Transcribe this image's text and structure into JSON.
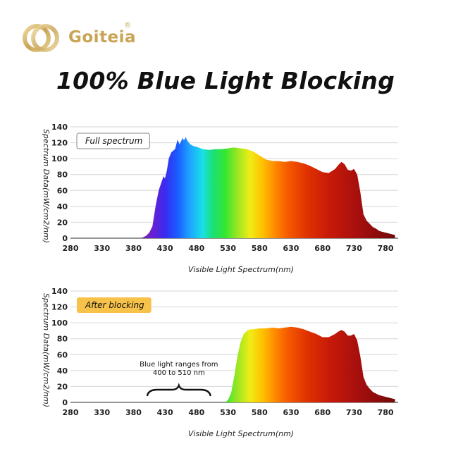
{
  "brand": {
    "name": "Goiteia",
    "registered": "®",
    "logo_icon": "gold-ring-logo-icon",
    "color": "#c9a455"
  },
  "headline": "100% Blue Light Blocking",
  "chart_data": [
    {
      "type": "area",
      "badge": "Full spectrum",
      "badge_color": "#ffffff",
      "xlabel": "Visible Light Spectrum(nm)",
      "ylabel": "Spectrum Data(mW/cm2/nm)",
      "xlim": [
        280,
        800
      ],
      "ylim": [
        0,
        140
      ],
      "x_ticks": [
        280,
        330,
        380,
        430,
        480,
        530,
        580,
        630,
        680,
        730,
        780
      ],
      "y_ticks": [
        0,
        20,
        40,
        60,
        80,
        100,
        120,
        140
      ],
      "grid": true,
      "fill": "wavelength-rainbow",
      "series": [
        {
          "x": [
            390,
            395,
            400,
            405,
            410,
            415,
            420,
            425,
            428,
            430,
            433,
            436,
            440,
            443,
            446,
            450,
            453,
            455,
            458,
            460,
            463,
            466,
            470,
            475,
            480,
            490,
            500,
            510,
            520,
            530,
            540,
            550,
            560,
            570,
            580,
            590,
            600,
            610,
            620,
            630,
            640,
            650,
            660,
            670,
            680,
            690,
            700,
            705,
            710,
            715,
            720,
            725,
            730,
            735,
            740,
            745,
            750,
            755,
            760,
            765,
            770,
            780,
            790,
            795
          ],
          "y": [
            0,
            1,
            3,
            7,
            15,
            40,
            60,
            72,
            78,
            75,
            85,
            100,
            108,
            110,
            112,
            124,
            118,
            121,
            126,
            123,
            127,
            122,
            118,
            116,
            115,
            112,
            111,
            112,
            112,
            113,
            114,
            113,
            112,
            109,
            104,
            99,
            97,
            97,
            96,
            97,
            96,
            94,
            91,
            87,
            83,
            82,
            87,
            92,
            96,
            93,
            86,
            85,
            87,
            80,
            58,
            30,
            22,
            18,
            14,
            12,
            9,
            7,
            5,
            4
          ]
        }
      ]
    },
    {
      "type": "area",
      "badge": "After blocking",
      "badge_color": "#f7c24a",
      "xlabel": "Visible Light Spectrum(nm)",
      "ylabel": "Spectrum Data(mW/cm2/nm)",
      "xlim": [
        280,
        800
      ],
      "ylim": [
        0,
        140
      ],
      "x_ticks": [
        280,
        330,
        380,
        430,
        480,
        530,
        580,
        630,
        680,
        730,
        780
      ],
      "y_ticks": [
        0,
        20,
        40,
        60,
        80,
        100,
        120,
        140
      ],
      "grid": true,
      "fill": "wavelength-rainbow",
      "annotation": {
        "text": [
          "Blue light ranges from",
          "400 to 510 nm"
        ],
        "range": [
          400,
          510
        ]
      },
      "series": [
        {
          "x": [
            525,
            530,
            535,
            540,
            545,
            550,
            555,
            560,
            565,
            570,
            580,
            590,
            600,
            610,
            620,
            630,
            640,
            650,
            660,
            670,
            680,
            690,
            700,
            705,
            710,
            715,
            720,
            725,
            730,
            735,
            740,
            745,
            750,
            755,
            760,
            765,
            770,
            780,
            790,
            795
          ],
          "y": [
            0,
            3,
            12,
            33,
            58,
            76,
            86,
            90,
            92,
            92,
            93,
            93,
            94,
            93,
            94,
            95,
            94,
            92,
            89,
            86,
            82,
            82,
            86,
            89,
            91,
            89,
            84,
            84,
            86,
            78,
            58,
            32,
            22,
            17,
            13,
            11,
            9,
            7,
            5,
            4
          ]
        }
      ]
    }
  ]
}
